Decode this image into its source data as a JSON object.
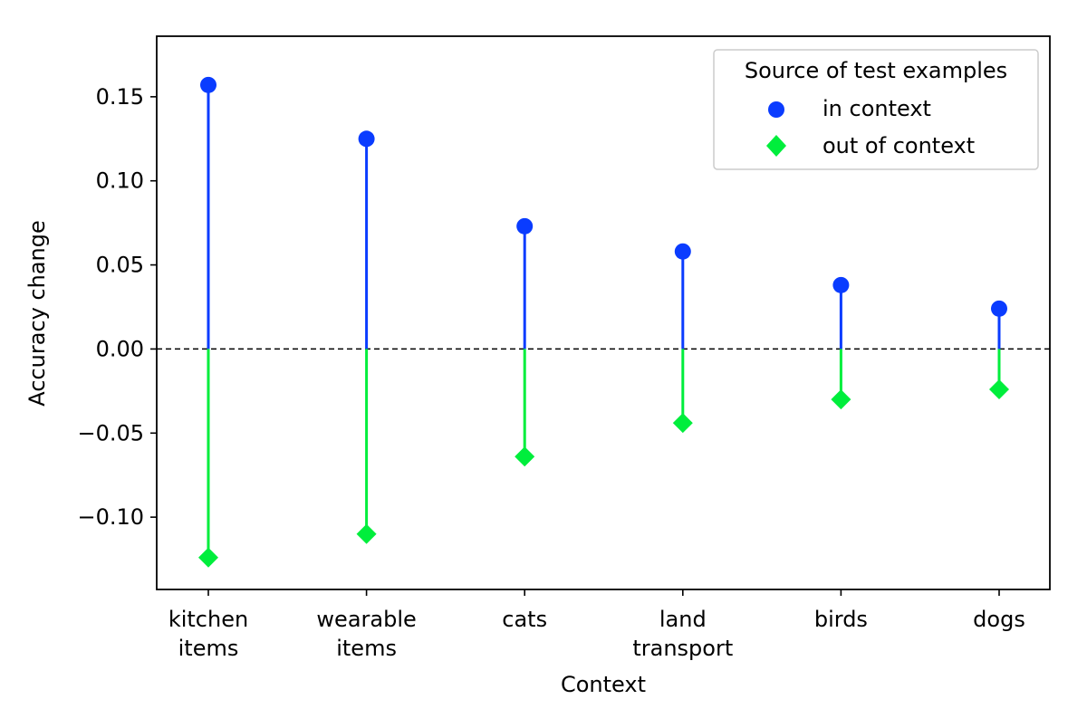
{
  "chart_data": {
    "type": "scatter",
    "categories": [
      [
        "kitchen",
        "items"
      ],
      [
        "wearable",
        "items"
      ],
      [
        "cats"
      ],
      [
        "land",
        "transport"
      ],
      [
        "birds"
      ],
      [
        "dogs"
      ]
    ],
    "series": [
      {
        "name": "in context",
        "values": [
          0.157,
          0.125,
          0.073,
          0.058,
          0.038,
          0.024
        ],
        "marker": "circle",
        "color": "#0a3cff"
      },
      {
        "name": "out of context",
        "values": [
          -0.124,
          -0.11,
          -0.064,
          -0.044,
          -0.03,
          -0.024
        ],
        "marker": "diamond",
        "color": "#00ee3c"
      }
    ],
    "xlabel": "Context",
    "ylabel": "Accuracy change",
    "ylim": [
      -0.143,
      0.186
    ],
    "yticks": [
      -0.1,
      -0.05,
      0.0,
      0.05,
      0.1,
      0.15
    ],
    "ytick_labels": [
      "−0.10",
      "−0.05",
      "0.00",
      "0.05",
      "0.10",
      "0.15"
    ],
    "baseline": 0.0,
    "grid": false,
    "legend": {
      "title": "Source of test examples",
      "placement": "top-right"
    }
  }
}
